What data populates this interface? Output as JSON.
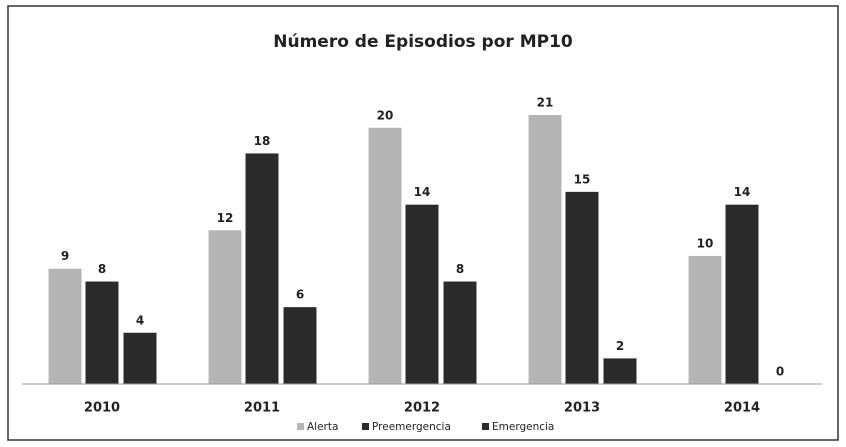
{
  "chart_data": {
    "type": "bar",
    "title": "Número de Episodios por MP10",
    "categories": [
      "2010",
      "2011",
      "2012",
      "2013",
      "2014"
    ],
    "series": [
      {
        "name": "Alerta",
        "color": "#b4b4b4",
        "values": [
          9,
          12,
          20,
          21,
          10
        ]
      },
      {
        "name": "Preemergencia",
        "color": "#2b2b2b",
        "values": [
          8,
          18,
          14,
          15,
          14
        ]
      },
      {
        "name": "Emergencia",
        "color": "#2b2b2b",
        "values": [
          4,
          6,
          8,
          2,
          0
        ]
      }
    ]
  }
}
